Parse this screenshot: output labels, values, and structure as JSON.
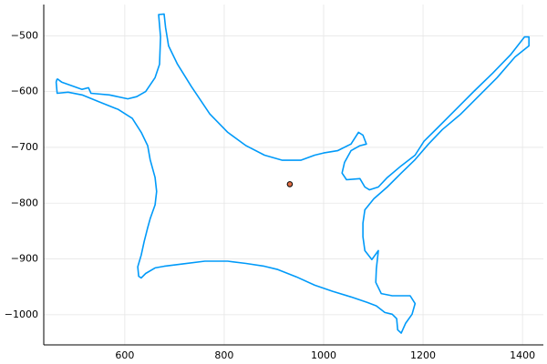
{
  "chart_data": {
    "type": "line",
    "xlim": [
      437,
      1442
    ],
    "ylim": [
      -1054,
      -444
    ],
    "xticks": [
      600,
      800,
      1000,
      1200,
      1400
    ],
    "yticks": [
      {
        "value": -1000,
        "label": "−1000"
      },
      {
        "value": -900,
        "label": "−900"
      },
      {
        "value": -800,
        "label": "−800"
      },
      {
        "value": -700,
        "label": "−700"
      },
      {
        "value": -600,
        "label": "−600"
      },
      {
        "value": -500,
        "label": "−500"
      }
    ],
    "grid": true,
    "series": [
      {
        "type": "line",
        "color": "#009af9",
        "x": [
          464,
          473,
          514,
          527,
          532,
          569,
          606,
          624,
          642,
          661,
          670,
          672,
          668,
          679,
          682,
          688,
          706,
          734,
          771,
          807,
          844,
          881,
          917,
          954,
          982,
          1000,
          1028,
          1055,
          1070,
          1079,
          1086,
          1073,
          1055,
          1042,
          1037,
          1046,
          1073,
          1083,
          1092,
          1110,
          1128,
          1156,
          1184,
          1202,
          1229,
          1266,
          1303,
          1340,
          1376,
          1404,
          1413,
          1413,
          1385,
          1349,
          1312,
          1275,
          1239,
          1211,
          1184,
          1156,
          1128,
          1101,
          1083,
          1079,
          1079,
          1083,
          1097,
          1110,
          1106,
          1105,
          1116,
          1138,
          1174,
          1184,
          1178,
          1165,
          1156,
          1149,
          1147,
          1138,
          1123,
          1106,
          1088,
          1055,
          1018,
          982,
          945,
          908,
          881,
          844,
          807,
          761,
          716,
          679,
          661,
          642,
          633,
          628,
          626,
          633,
          639,
          646,
          651,
          661,
          664,
          661,
          651,
          646,
          633,
          615,
          587,
          550,
          514,
          486,
          464,
          462,
          464
        ],
        "y": [
          -577,
          -583,
          -596,
          -593,
          -603,
          -606,
          -613,
          -609,
          -600,
          -575,
          -551,
          -502,
          -462,
          -461,
          -485,
          -518,
          -551,
          -591,
          -640,
          -673,
          -697,
          -714,
          -723,
          -723,
          -714,
          -710,
          -706,
          -694,
          -673,
          -678,
          -694,
          -697,
          -706,
          -727,
          -746,
          -758,
          -756,
          -771,
          -776,
          -771,
          -754,
          -733,
          -714,
          -689,
          -665,
          -632,
          -599,
          -567,
          -534,
          -502,
          -502,
          -518,
          -538,
          -575,
          -608,
          -641,
          -668,
          -694,
          -722,
          -746,
          -771,
          -792,
          -812,
          -836,
          -860,
          -885,
          -901,
          -885,
          -918,
          -942,
          -962,
          -966,
          -966,
          -980,
          -999,
          -1015,
          -1033,
          -1027,
          -1007,
          -999,
          -996,
          -984,
          -978,
          -968,
          -958,
          -947,
          -932,
          -919,
          -913,
          -908,
          -904,
          -904,
          -909,
          -913,
          -916,
          -926,
          -934,
          -931,
          -914,
          -893,
          -869,
          -844,
          -828,
          -803,
          -779,
          -754,
          -722,
          -697,
          -673,
          -648,
          -632,
          -619,
          -606,
          -601,
          -603,
          -583,
          -577
        ]
      },
      {
        "type": "scatter",
        "color": "#e26f46",
        "x": [
          932
        ],
        "y": [
          -766
        ]
      }
    ]
  }
}
